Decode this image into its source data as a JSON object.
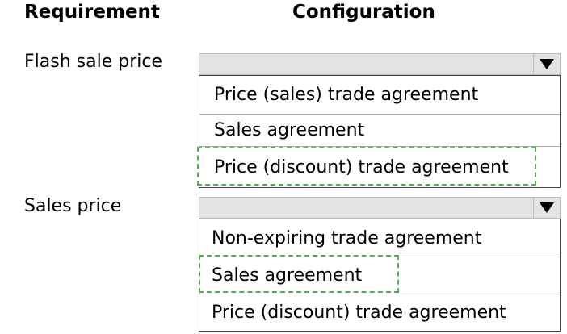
{
  "headers": {
    "requirement": "Requirement",
    "configuration": "Configuration"
  },
  "rows": [
    {
      "label": "Flash sale price",
      "options": [
        "Price (sales) trade agreement",
        "Sales agreement",
        "Price (discount) trade agreement"
      ],
      "selected_index": 2
    },
    {
      "label": "Sales price",
      "options": [
        "Non-expiring trade agreement",
        "Sales agreement",
        "Price (discount) trade agreement"
      ],
      "selected_index": 1
    }
  ],
  "colors": {
    "selection_border": "#4caf50",
    "dropdown_bar": "#e3e3e3"
  },
  "icons": {
    "dropdown": "triangle-down-icon"
  }
}
